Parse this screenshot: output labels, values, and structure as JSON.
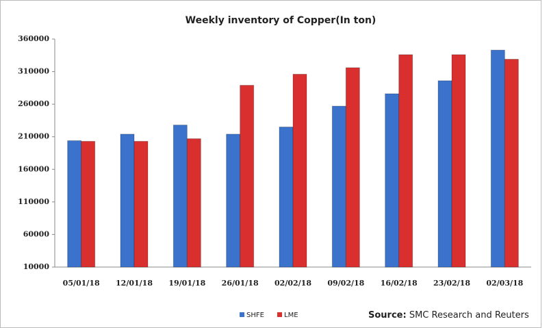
{
  "chart_data": {
    "type": "bar",
    "title": "Weekly inventory of Copper(In ton)",
    "categories": [
      "05/01/18",
      "12/01/18",
      "19/01/18",
      "26/01/18",
      "02/02/18",
      "09/02/18",
      "16/02/18",
      "23/02/18",
      "02/03/18"
    ],
    "series": [
      {
        "name": "SHFE",
        "color": "#3b73cc",
        "values": [
          204000,
          214000,
          228000,
          214000,
          225000,
          257000,
          276000,
          296000,
          343000
        ]
      },
      {
        "name": "LME",
        "color": "#d92f2f",
        "values": [
          203000,
          203000,
          207000,
          289000,
          306000,
          316000,
          336000,
          336000,
          329000
        ]
      }
    ],
    "ylim": [
      10000,
      360000
    ],
    "yticks": [
      10000,
      60000,
      110000,
      160000,
      210000,
      260000,
      310000,
      360000
    ],
    "grid": false,
    "legend": "bottom",
    "source_label": "Source:",
    "source": "SMC Research and Reuters"
  }
}
